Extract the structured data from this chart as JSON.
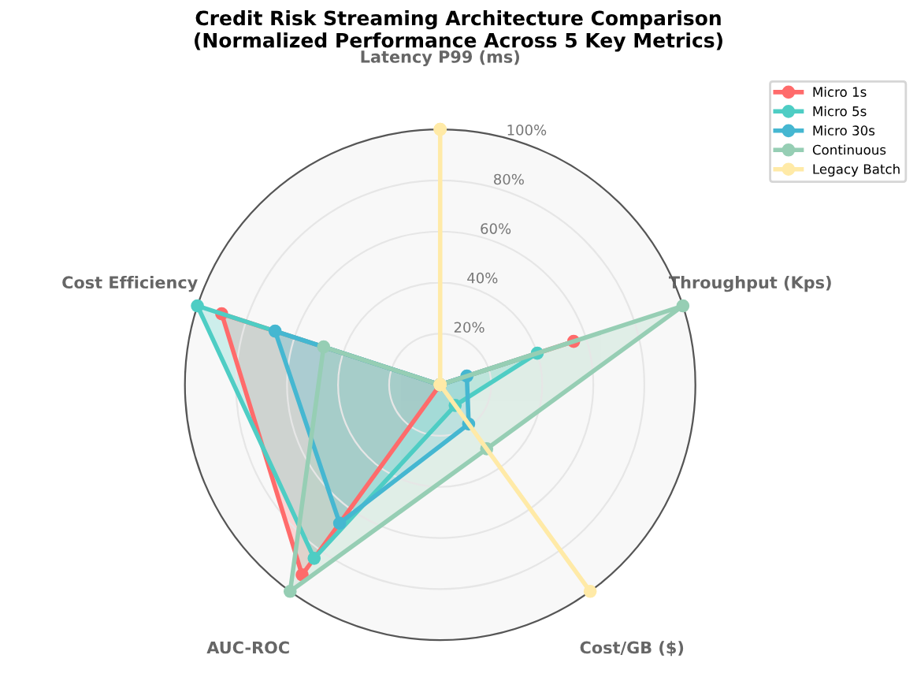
{
  "chart_data": {
    "type": "radar",
    "title": "Credit Risk Streaming Architecture Comparison\n(Normalized Performance Across 5 Key Metrics)",
    "categories": [
      "Latency P99 (ms)",
      "Throughput (Kps)",
      "Cost/GB ($)",
      "AUC-ROC",
      "Cost Efficiency"
    ],
    "ylim": [
      0,
      100
    ],
    "yticks": [
      {
        "value": 20,
        "label": "20%"
      },
      {
        "value": 40,
        "label": "40%"
      },
      {
        "value": 60,
        "label": "60%"
      },
      {
        "value": 80,
        "label": "80%"
      },
      {
        "value": 100,
        "label": "100%"
      }
    ],
    "series": [
      {
        "name": "Micro 1s",
        "color": "#ff6b6b",
        "values": [
          0,
          55,
          0,
          92,
          90
        ]
      },
      {
        "name": "Micro 5s",
        "color": "#4ecdc4",
        "values": [
          0,
          40,
          10,
          84,
          100
        ]
      },
      {
        "name": "Micro 30s",
        "color": "#45b7d1",
        "values": [
          0,
          11,
          19,
          67,
          68
        ]
      },
      {
        "name": "Continuous",
        "color": "#96ceb4",
        "values": [
          0,
          100,
          31,
          100,
          48
        ]
      },
      {
        "name": "Legacy Batch",
        "color": "#ffeaa7",
        "values": [
          100,
          0,
          100,
          0,
          0
        ]
      }
    ],
    "marker": "circle",
    "line_style": "solid",
    "grid": true,
    "legend": "top right"
  }
}
